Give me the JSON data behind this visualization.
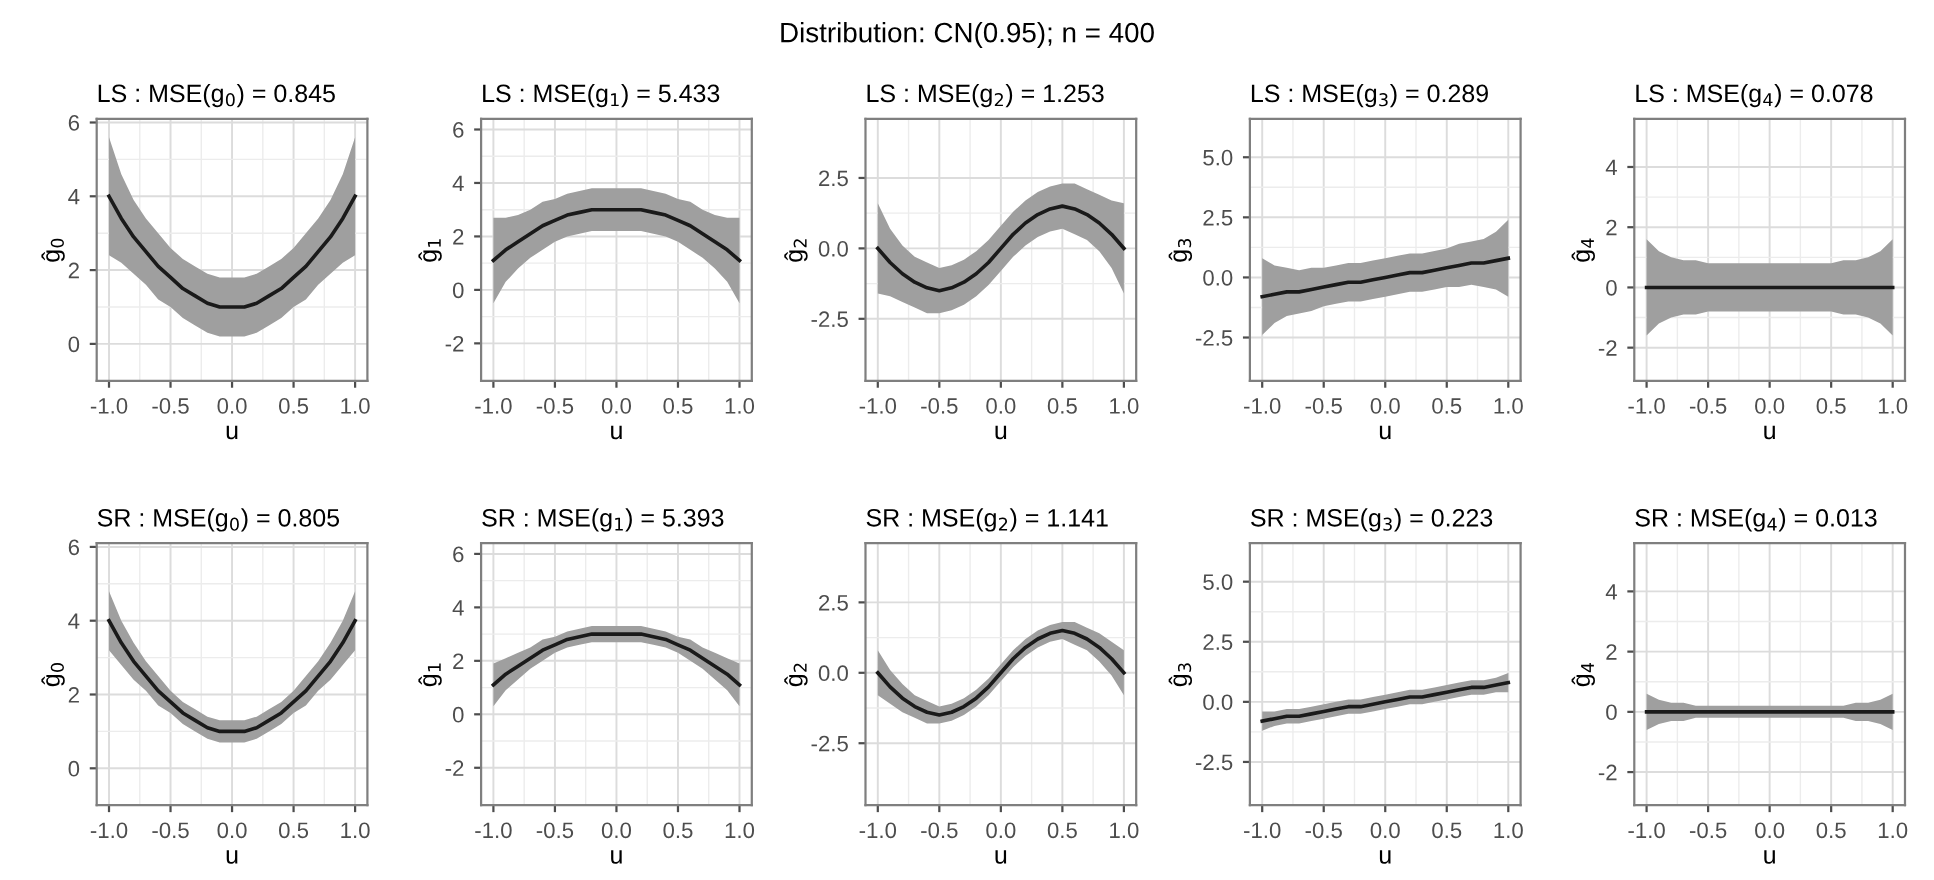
{
  "chart_data": [
    {
      "type": "line",
      "title": "LS : MSE(g$_{0}$) = 0.845",
      "xlabel": "u",
      "ylabel": "ĝ$_{0}$",
      "annotations": [
        "Distribution: CN(0.95); n = 400"
      ],
      "x": [
        -1.0,
        -0.9,
        -0.8,
        -0.7,
        -0.6,
        -0.5,
        -0.4,
        -0.3,
        -0.2,
        -0.1,
        0.0,
        0.1,
        0.2,
        0.3,
        0.4,
        0.5,
        0.6,
        0.7,
        0.8,
        0.9,
        1.0
      ],
      "series": [
        {
          "color": "#1a1a1a",
          "values": [
            4.0,
            3.4,
            2.9,
            2.5,
            2.1,
            1.8,
            1.5,
            1.3,
            1.1,
            1.0,
            1.0,
            1.0,
            1.1,
            1.3,
            1.5,
            1.8,
            2.1,
            2.5,
            2.9,
            3.4,
            4.0
          ],
          "lower": [
            2.4,
            2.2,
            1.9,
            1.6,
            1.2,
            1.0,
            0.7,
            0.5,
            0.3,
            0.2,
            0.2,
            0.2,
            0.3,
            0.5,
            0.7,
            1.0,
            1.2,
            1.6,
            1.9,
            2.2,
            2.4
          ],
          "upper": [
            5.6,
            4.6,
            3.9,
            3.4,
            3.0,
            2.6,
            2.3,
            2.1,
            1.9,
            1.8,
            1.8,
            1.8,
            1.9,
            2.1,
            2.3,
            2.6,
            3.0,
            3.4,
            3.9,
            4.6,
            5.6
          ]
        }
      ],
      "xlim": [
        -1.1,
        1.1
      ],
      "xticks": [
        {
          "value": -1,
          "label": "-1.0"
        },
        {
          "value": -0.5,
          "label": "-0.5"
        },
        {
          "value": 0,
          "label": "0.0"
        },
        {
          "value": 0.5,
          "label": "0.5"
        },
        {
          "value": 1,
          "label": "1.0"
        }
      ],
      "ylim": [
        -1.0,
        6.1
      ],
      "yticks": [
        0,
        2,
        4,
        6
      ],
      "grid": true
    },
    {
      "type": "line",
      "title": "LS : MSE(g$_{1}$) = 5.433",
      "xlabel": "u",
      "ylabel": "ĝ$_{1}$",
      "x": [
        -1.0,
        -0.9,
        -0.8,
        -0.7,
        -0.6,
        -0.5,
        -0.4,
        -0.3,
        -0.2,
        -0.1,
        0.0,
        0.1,
        0.2,
        0.3,
        0.4,
        0.5,
        0.6,
        0.7,
        0.8,
        0.9,
        1.0
      ],
      "series": [
        {
          "color": "#1a1a1a",
          "values": [
            1.1,
            1.5,
            1.8,
            2.1,
            2.4,
            2.6,
            2.8,
            2.9,
            3.0,
            3.0,
            3.0,
            3.0,
            3.0,
            2.9,
            2.8,
            2.6,
            2.4,
            2.1,
            1.8,
            1.5,
            1.1
          ],
          "lower": [
            -0.5,
            0.3,
            0.8,
            1.2,
            1.5,
            1.8,
            2.0,
            2.1,
            2.2,
            2.2,
            2.2,
            2.2,
            2.2,
            2.1,
            2.0,
            1.8,
            1.5,
            1.2,
            0.8,
            0.3,
            -0.5
          ],
          "upper": [
            2.7,
            2.7,
            2.8,
            3.0,
            3.3,
            3.4,
            3.6,
            3.7,
            3.8,
            3.8,
            3.8,
            3.8,
            3.8,
            3.7,
            3.6,
            3.4,
            3.3,
            3.0,
            2.8,
            2.7,
            2.7
          ]
        }
      ],
      "xlim": [
        -1.1,
        1.1
      ],
      "xticks": [
        {
          "value": -1,
          "label": "-1.0"
        },
        {
          "value": -0.5,
          "label": "-0.5"
        },
        {
          "value": 0,
          "label": "0.0"
        },
        {
          "value": 0.5,
          "label": "0.5"
        },
        {
          "value": 1,
          "label": "1.0"
        }
      ],
      "ylim": [
        -3.4,
        6.4
      ],
      "yticks": [
        {
          "value": -2,
          "label": "-2"
        },
        0,
        2,
        4,
        6
      ],
      "grid": true
    },
    {
      "type": "line",
      "title": "LS : MSE(g$_{2}$) = 1.253",
      "xlabel": "u",
      "ylabel": "ĝ$_{2}$",
      "x": [
        -1.0,
        -0.9,
        -0.8,
        -0.7,
        -0.6,
        -0.5,
        -0.4,
        -0.3,
        -0.2,
        -0.1,
        0.0,
        0.1,
        0.2,
        0.3,
        0.4,
        0.5,
        0.6,
        0.7,
        0.8,
        0.9,
        1.0
      ],
      "series": [
        {
          "color": "#1a1a1a",
          "values": [
            0.0,
            -0.5,
            -0.9,
            -1.2,
            -1.4,
            -1.5,
            -1.4,
            -1.2,
            -0.9,
            -0.5,
            0.0,
            0.5,
            0.9,
            1.2,
            1.4,
            1.5,
            1.4,
            1.2,
            0.9,
            0.5,
            0.0
          ],
          "lower": [
            -1.6,
            -1.7,
            -1.9,
            -2.1,
            -2.3,
            -2.3,
            -2.2,
            -2.0,
            -1.7,
            -1.3,
            -0.8,
            -0.3,
            0.1,
            0.4,
            0.6,
            0.7,
            0.5,
            0.3,
            -0.1,
            -0.7,
            -1.6
          ],
          "upper": [
            1.6,
            0.7,
            0.1,
            -0.3,
            -0.5,
            -0.7,
            -0.6,
            -0.4,
            -0.1,
            0.3,
            0.8,
            1.3,
            1.7,
            2.0,
            2.2,
            2.3,
            2.3,
            2.1,
            1.9,
            1.7,
            1.6
          ]
        }
      ],
      "xlim": [
        -1.1,
        1.1
      ],
      "xticks": [
        {
          "value": -1,
          "label": "-1.0"
        },
        {
          "value": -0.5,
          "label": "-0.5"
        },
        {
          "value": 0,
          "label": "0.0"
        },
        {
          "value": 0.5,
          "label": "0.5"
        },
        {
          "value": 1,
          "label": "1.0"
        }
      ],
      "ylim": [
        -4.7,
        4.6
      ],
      "yticks": [
        {
          "value": -2.5,
          "label": "-2.5"
        },
        {
          "value": 0,
          "label": "0.0"
        },
        2.5
      ],
      "grid": true
    },
    {
      "type": "line",
      "title": "LS : MSE(g$_{3}$) = 0.289",
      "xlabel": "u",
      "ylabel": "ĝ$_{3}$",
      "x": [
        -1.0,
        -0.9,
        -0.8,
        -0.7,
        -0.6,
        -0.5,
        -0.4,
        -0.3,
        -0.2,
        -0.1,
        0.0,
        0.1,
        0.2,
        0.3,
        0.4,
        0.5,
        0.6,
        0.7,
        0.8,
        0.9,
        1.0
      ],
      "series": [
        {
          "color": "#1a1a1a",
          "values": [
            -0.8,
            -0.7,
            -0.6,
            -0.6,
            -0.5,
            -0.4,
            -0.3,
            -0.2,
            -0.2,
            -0.1,
            0.0,
            0.1,
            0.2,
            0.2,
            0.3,
            0.4,
            0.5,
            0.6,
            0.6,
            0.7,
            0.8
          ],
          "lower": [
            -2.4,
            -1.9,
            -1.6,
            -1.5,
            -1.4,
            -1.2,
            -1.1,
            -1.0,
            -1.0,
            -0.9,
            -0.8,
            -0.7,
            -0.6,
            -0.6,
            -0.5,
            -0.4,
            -0.4,
            -0.3,
            -0.4,
            -0.5,
            -0.8
          ],
          "upper": [
            0.8,
            0.5,
            0.4,
            0.3,
            0.4,
            0.4,
            0.5,
            0.6,
            0.6,
            0.7,
            0.8,
            0.9,
            1.0,
            1.0,
            1.1,
            1.2,
            1.4,
            1.5,
            1.6,
            1.9,
            2.4
          ]
        }
      ],
      "xlim": [
        -1.1,
        1.1
      ],
      "xticks": [
        {
          "value": -1,
          "label": "-1.0"
        },
        {
          "value": -0.5,
          "label": "-0.5"
        },
        {
          "value": 0,
          "label": "0.0"
        },
        {
          "value": 0.5,
          "label": "0.5"
        },
        {
          "value": 1,
          "label": "1.0"
        }
      ],
      "ylim": [
        -4.3,
        6.6
      ],
      "yticks": [
        {
          "value": -2.5,
          "label": "-2.5"
        },
        {
          "value": 0,
          "label": "0.0"
        },
        2.5,
        {
          "value": 5,
          "label": "5.0"
        }
      ],
      "grid": true
    },
    {
      "type": "line",
      "title": "LS : MSE(g$_{4}$) = 0.078",
      "xlabel": "u",
      "ylabel": "ĝ$_{4}$",
      "x": [
        -1.0,
        -0.9,
        -0.8,
        -0.7,
        -0.6,
        -0.5,
        -0.4,
        -0.3,
        -0.2,
        -0.1,
        0.0,
        0.1,
        0.2,
        0.3,
        0.4,
        0.5,
        0.6,
        0.7,
        0.8,
        0.9,
        1.0
      ],
      "series": [
        {
          "color": "#1a1a1a",
          "values": [
            0,
            0,
            0,
            0,
            0,
            0,
            0,
            0,
            0,
            0,
            0,
            0,
            0,
            0,
            0,
            0,
            0,
            0,
            0,
            0,
            0
          ],
          "lower": [
            -1.6,
            -1.2,
            -1.0,
            -0.9,
            -0.9,
            -0.8,
            -0.8,
            -0.8,
            -0.8,
            -0.8,
            -0.8,
            -0.8,
            -0.8,
            -0.8,
            -0.8,
            -0.8,
            -0.9,
            -0.9,
            -1.0,
            -1.2,
            -1.6
          ],
          "upper": [
            1.6,
            1.2,
            1.0,
            0.9,
            0.9,
            0.8,
            0.8,
            0.8,
            0.8,
            0.8,
            0.8,
            0.8,
            0.8,
            0.8,
            0.8,
            0.8,
            0.9,
            0.9,
            1.0,
            1.2,
            1.6
          ]
        }
      ],
      "xlim": [
        -1.1,
        1.1
      ],
      "xticks": [
        {
          "value": -1,
          "label": "-1.0"
        },
        {
          "value": -0.5,
          "label": "-0.5"
        },
        {
          "value": 0,
          "label": "0.0"
        },
        {
          "value": 0.5,
          "label": "0.5"
        },
        {
          "value": 1,
          "label": "1.0"
        }
      ],
      "ylim": [
        -3.1,
        5.6
      ],
      "yticks": [
        {
          "value": -2,
          "label": "-2"
        },
        0,
        2,
        4
      ],
      "grid": true
    },
    {
      "type": "line",
      "title": "SR : MSE(g$_{0}$) = 0.805",
      "xlabel": "u",
      "ylabel": "ĝ$_{0}$",
      "x": [
        -1.0,
        -0.9,
        -0.8,
        -0.7,
        -0.6,
        -0.5,
        -0.4,
        -0.3,
        -0.2,
        -0.1,
        0.0,
        0.1,
        0.2,
        0.3,
        0.4,
        0.5,
        0.6,
        0.7,
        0.8,
        0.9,
        1.0
      ],
      "series": [
        {
          "color": "#1a1a1a",
          "values": [
            4.0,
            3.4,
            2.9,
            2.5,
            2.1,
            1.8,
            1.5,
            1.3,
            1.1,
            1.0,
            1.0,
            1.0,
            1.1,
            1.3,
            1.5,
            1.8,
            2.1,
            2.5,
            2.9,
            3.4,
            4.0
          ],
          "lower": [
            3.2,
            2.8,
            2.4,
            2.1,
            1.7,
            1.5,
            1.2,
            1.0,
            0.8,
            0.7,
            0.7,
            0.7,
            0.8,
            1.0,
            1.2,
            1.5,
            1.7,
            2.1,
            2.4,
            2.8,
            3.2
          ],
          "upper": [
            4.8,
            4.0,
            3.4,
            2.9,
            2.5,
            2.1,
            1.8,
            1.6,
            1.4,
            1.3,
            1.3,
            1.3,
            1.4,
            1.6,
            1.8,
            2.1,
            2.5,
            2.9,
            3.4,
            4.0,
            4.8
          ]
        }
      ],
      "xlim": [
        -1.1,
        1.1
      ],
      "xticks": [
        {
          "value": -1,
          "label": "-1.0"
        },
        {
          "value": -0.5,
          "label": "-0.5"
        },
        {
          "value": 0,
          "label": "0.0"
        },
        {
          "value": 0.5,
          "label": "0.5"
        },
        {
          "value": 1,
          "label": "1.0"
        }
      ],
      "ylim": [
        -1.0,
        6.1
      ],
      "yticks": [
        0,
        2,
        4,
        6
      ],
      "grid": true
    },
    {
      "type": "line",
      "title": "SR : MSE(g$_{1}$) = 5.393",
      "xlabel": "u",
      "ylabel": "ĝ$_{1}$",
      "x": [
        -1.0,
        -0.9,
        -0.8,
        -0.7,
        -0.6,
        -0.5,
        -0.4,
        -0.3,
        -0.2,
        -0.1,
        0.0,
        0.1,
        0.2,
        0.3,
        0.4,
        0.5,
        0.6,
        0.7,
        0.8,
        0.9,
        1.0
      ],
      "series": [
        {
          "color": "#1a1a1a",
          "values": [
            1.1,
            1.5,
            1.8,
            2.1,
            2.4,
            2.6,
            2.8,
            2.9,
            3.0,
            3.0,
            3.0,
            3.0,
            3.0,
            2.9,
            2.8,
            2.6,
            2.4,
            2.1,
            1.8,
            1.5,
            1.1
          ],
          "lower": [
            0.3,
            0.9,
            1.3,
            1.7,
            2.0,
            2.3,
            2.5,
            2.6,
            2.7,
            2.7,
            2.7,
            2.7,
            2.7,
            2.6,
            2.5,
            2.3,
            2.0,
            1.7,
            1.3,
            0.9,
            0.3
          ],
          "upper": [
            1.9,
            2.1,
            2.3,
            2.5,
            2.8,
            2.9,
            3.1,
            3.2,
            3.3,
            3.3,
            3.3,
            3.3,
            3.3,
            3.2,
            3.1,
            2.9,
            2.8,
            2.5,
            2.3,
            2.1,
            1.9
          ]
        }
      ],
      "xlim": [
        -1.1,
        1.1
      ],
      "xticks": [
        {
          "value": -1,
          "label": "-1.0"
        },
        {
          "value": -0.5,
          "label": "-0.5"
        },
        {
          "value": 0,
          "label": "0.0"
        },
        {
          "value": 0.5,
          "label": "0.5"
        },
        {
          "value": 1,
          "label": "1.0"
        }
      ],
      "ylim": [
        -3.4,
        6.4
      ],
      "yticks": [
        {
          "value": -2,
          "label": "-2"
        },
        0,
        2,
        4,
        6
      ],
      "grid": true
    },
    {
      "type": "line",
      "title": "SR : MSE(g$_{2}$) = 1.141",
      "xlabel": "u",
      "ylabel": "ĝ$_{2}$",
      "x": [
        -1.0,
        -0.9,
        -0.8,
        -0.7,
        -0.6,
        -0.5,
        -0.4,
        -0.3,
        -0.2,
        -0.1,
        0.0,
        0.1,
        0.2,
        0.3,
        0.4,
        0.5,
        0.6,
        0.7,
        0.8,
        0.9,
        1.0
      ],
      "series": [
        {
          "color": "#1a1a1a",
          "values": [
            0.0,
            -0.5,
            -0.9,
            -1.2,
            -1.4,
            -1.5,
            -1.4,
            -1.2,
            -0.9,
            -0.5,
            0.0,
            0.5,
            0.9,
            1.2,
            1.4,
            1.5,
            1.4,
            1.2,
            0.9,
            0.5,
            0.0
          ],
          "lower": [
            -0.8,
            -1.1,
            -1.4,
            -1.6,
            -1.8,
            -1.8,
            -1.7,
            -1.5,
            -1.2,
            -0.8,
            -0.3,
            0.2,
            0.6,
            0.9,
            1.1,
            1.2,
            1.0,
            0.8,
            0.4,
            -0.1,
            -0.8
          ],
          "upper": [
            0.8,
            0.1,
            -0.4,
            -0.8,
            -1.0,
            -1.2,
            -1.1,
            -0.9,
            -0.6,
            -0.2,
            0.3,
            0.8,
            1.2,
            1.5,
            1.7,
            1.8,
            1.8,
            1.6,
            1.4,
            1.1,
            0.8
          ]
        }
      ],
      "xlim": [
        -1.1,
        1.1
      ],
      "xticks": [
        {
          "value": -1,
          "label": "-1.0"
        },
        {
          "value": -0.5,
          "label": "-0.5"
        },
        {
          "value": 0,
          "label": "0.0"
        },
        {
          "value": 0.5,
          "label": "0.5"
        },
        {
          "value": 1,
          "label": "1.0"
        }
      ],
      "ylim": [
        -4.7,
        4.6
      ],
      "yticks": [
        {
          "value": -2.5,
          "label": "-2.5"
        },
        {
          "value": 0,
          "label": "0.0"
        },
        2.5
      ],
      "grid": true
    },
    {
      "type": "line",
      "title": "SR : MSE(g$_{3}$) = 0.223",
      "xlabel": "u",
      "ylabel": "ĝ$_{3}$",
      "x": [
        -1.0,
        -0.9,
        -0.8,
        -0.7,
        -0.6,
        -0.5,
        -0.4,
        -0.3,
        -0.2,
        -0.1,
        0.0,
        0.1,
        0.2,
        0.3,
        0.4,
        0.5,
        0.6,
        0.7,
        0.8,
        0.9,
        1.0
      ],
      "series": [
        {
          "color": "#1a1a1a",
          "values": [
            -0.8,
            -0.7,
            -0.6,
            -0.6,
            -0.5,
            -0.4,
            -0.3,
            -0.2,
            -0.2,
            -0.1,
            0.0,
            0.1,
            0.2,
            0.2,
            0.3,
            0.4,
            0.5,
            0.6,
            0.6,
            0.7,
            0.8
          ],
          "lower": [
            -1.2,
            -1.0,
            -0.9,
            -0.9,
            -0.8,
            -0.7,
            -0.6,
            -0.5,
            -0.5,
            -0.4,
            -0.3,
            -0.2,
            -0.1,
            -0.1,
            0.0,
            0.1,
            0.2,
            0.3,
            0.3,
            0.4,
            0.4
          ],
          "upper": [
            -0.4,
            -0.4,
            -0.3,
            -0.3,
            -0.2,
            -0.1,
            0.0,
            0.1,
            0.1,
            0.2,
            0.3,
            0.4,
            0.5,
            0.5,
            0.6,
            0.7,
            0.8,
            0.9,
            0.9,
            1.0,
            1.2
          ]
        }
      ],
      "xlim": [
        -1.1,
        1.1
      ],
      "xticks": [
        {
          "value": -1,
          "label": "-1.0"
        },
        {
          "value": -0.5,
          "label": "-0.5"
        },
        {
          "value": 0,
          "label": "0.0"
        },
        {
          "value": 0.5,
          "label": "0.5"
        },
        {
          "value": 1,
          "label": "1.0"
        }
      ],
      "ylim": [
        -4.3,
        6.6
      ],
      "yticks": [
        {
          "value": -2.5,
          "label": "-2.5"
        },
        {
          "value": 0,
          "label": "0.0"
        },
        2.5,
        {
          "value": 5,
          "label": "5.0"
        }
      ],
      "grid": true
    },
    {
      "type": "line",
      "title": "SR : MSE(g$_{4}$) = 0.013",
      "xlabel": "u",
      "ylabel": "ĝ$_{4}$",
      "x": [
        -1.0,
        -0.9,
        -0.8,
        -0.7,
        -0.6,
        -0.5,
        -0.4,
        -0.3,
        -0.2,
        -0.1,
        0.0,
        0.1,
        0.2,
        0.3,
        0.4,
        0.5,
        0.6,
        0.7,
        0.8,
        0.9,
        1.0
      ],
      "series": [
        {
          "color": "#1a1a1a",
          "values": [
            0,
            0,
            0,
            0,
            0,
            0,
            0,
            0,
            0,
            0,
            0,
            0,
            0,
            0,
            0,
            0,
            0,
            0,
            0,
            0,
            0
          ],
          "lower": [
            -0.6,
            -0.4,
            -0.3,
            -0.3,
            -0.2,
            -0.2,
            -0.2,
            -0.2,
            -0.2,
            -0.2,
            -0.2,
            -0.2,
            -0.2,
            -0.2,
            -0.2,
            -0.2,
            -0.2,
            -0.3,
            -0.3,
            -0.4,
            -0.6
          ],
          "upper": [
            0.6,
            0.4,
            0.3,
            0.3,
            0.2,
            0.2,
            0.2,
            0.2,
            0.2,
            0.2,
            0.2,
            0.2,
            0.2,
            0.2,
            0.2,
            0.2,
            0.2,
            0.3,
            0.3,
            0.4,
            0.6
          ]
        }
      ],
      "xlim": [
        -1.1,
        1.1
      ],
      "xticks": [
        {
          "value": -1,
          "label": "-1.0"
        },
        {
          "value": -0.5,
          "label": "-0.5"
        },
        {
          "value": 0,
          "label": "0.0"
        },
        {
          "value": 0.5,
          "label": "0.5"
        },
        {
          "value": 1,
          "label": "1.0"
        }
      ],
      "ylim": [
        -3.1,
        5.6
      ],
      "yticks": [
        {
          "value": -2,
          "label": "-2"
        },
        0,
        2,
        4
      ],
      "grid": true
    }
  ]
}
